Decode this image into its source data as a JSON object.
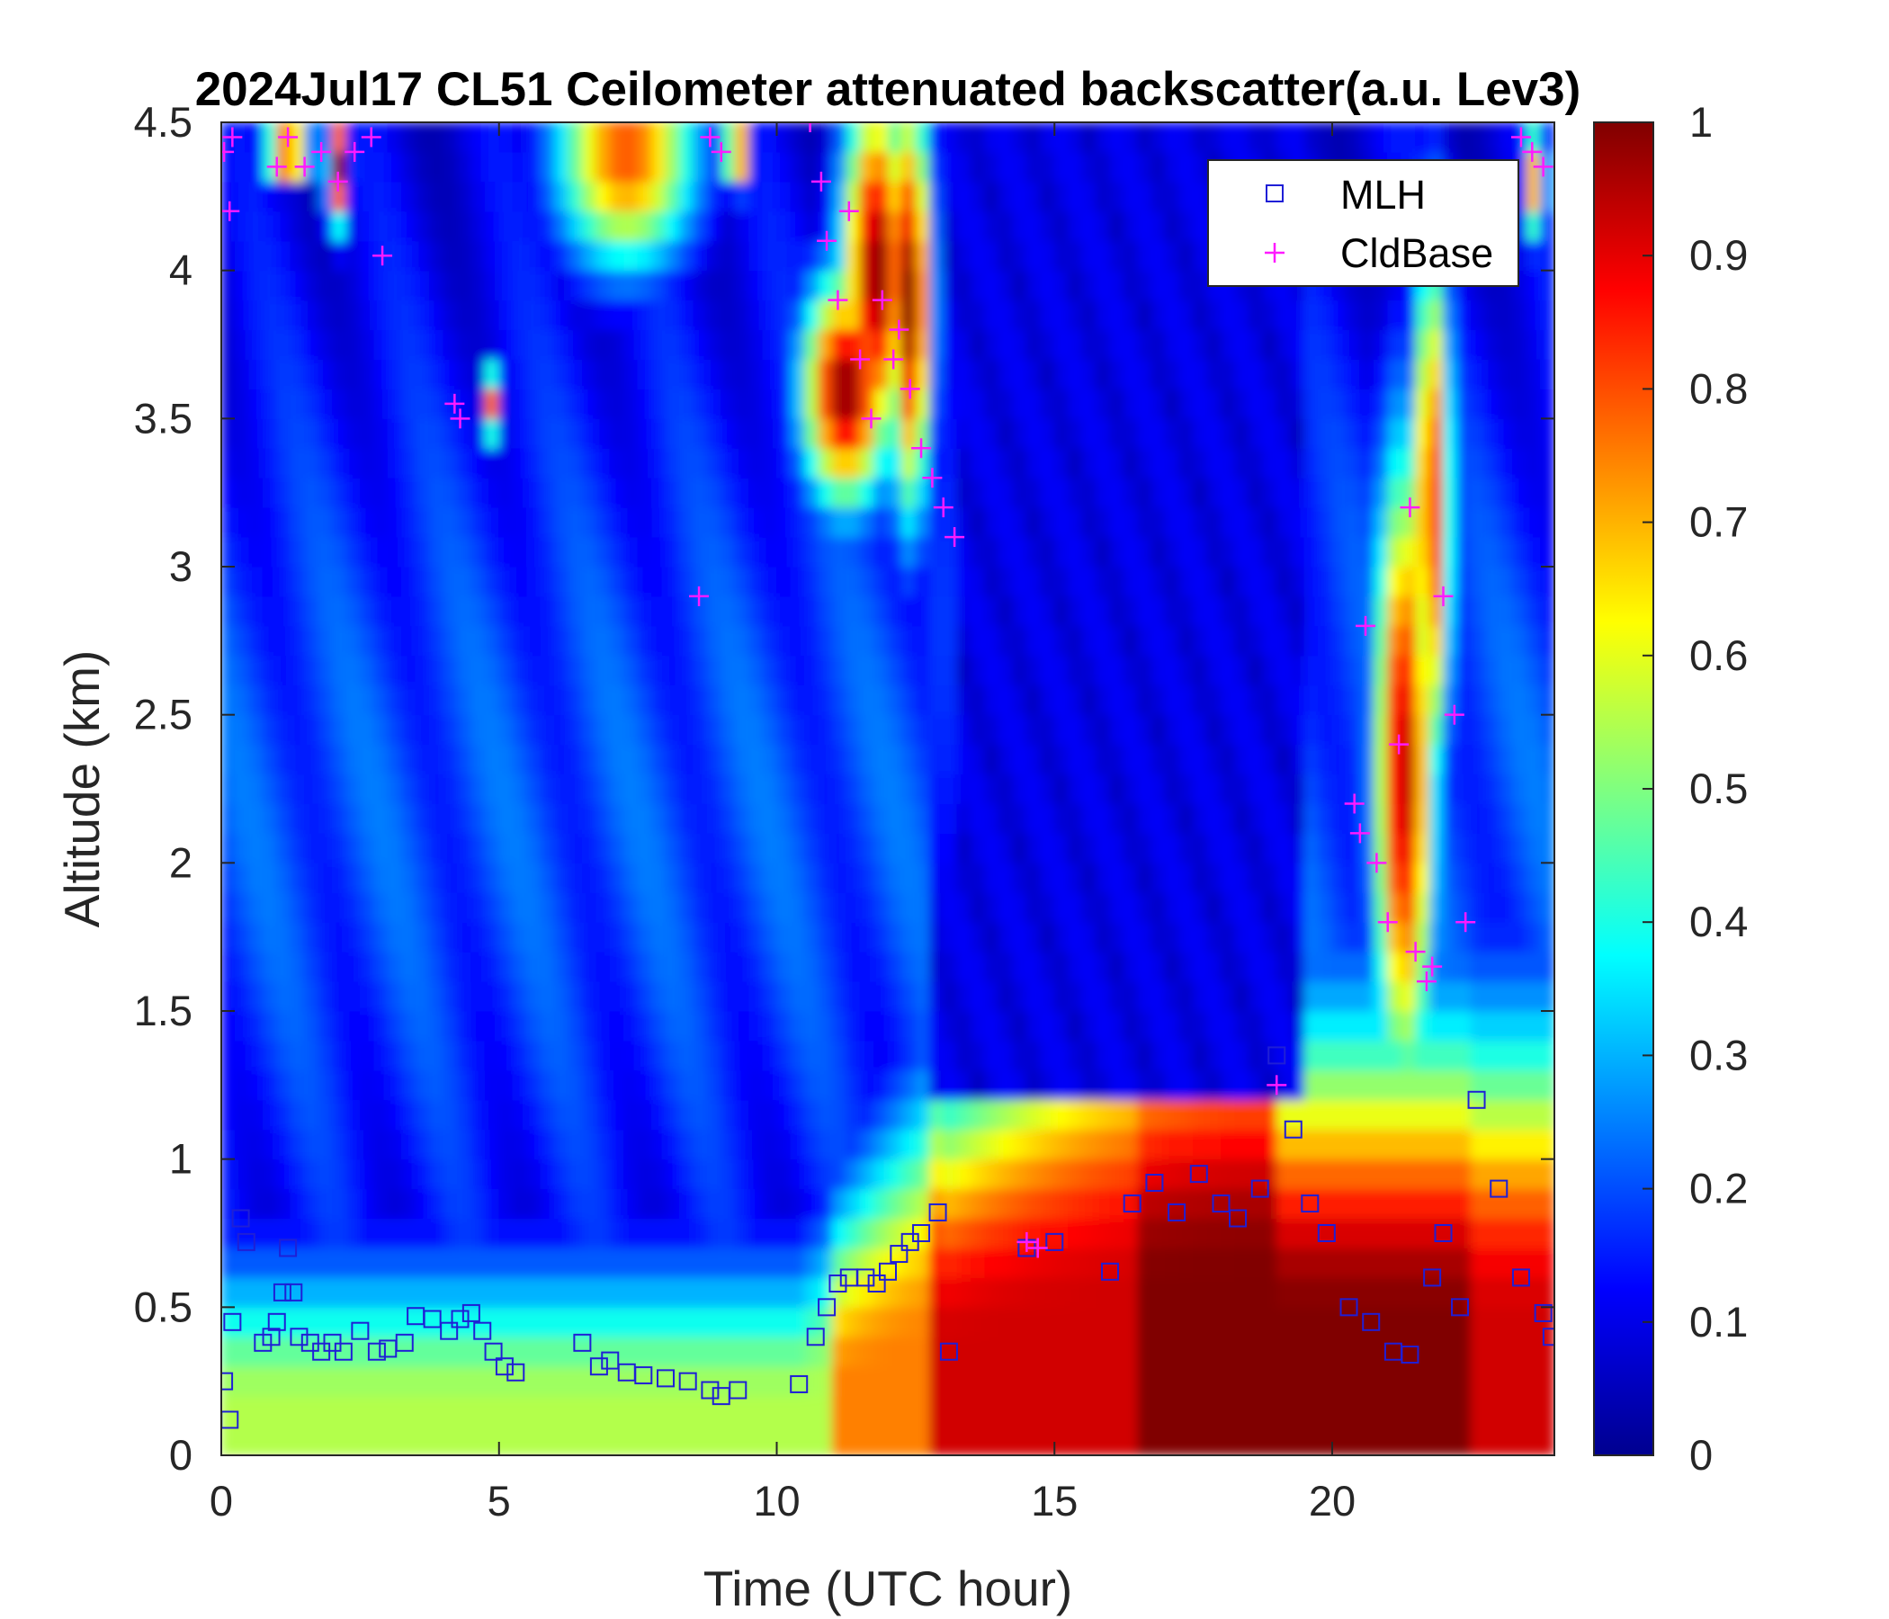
{
  "chart_data": {
    "type": "heatmap",
    "title": "2024Jul17 CL51 Ceilometer attenuated backscatter(a.u. Lev3)",
    "xlabel": "Time (UTC hour)",
    "ylabel": "Altitude (km)",
    "xlim": [
      0,
      24
    ],
    "ylim": [
      0,
      4.5
    ],
    "xticks": [
      "0",
      "5",
      "10",
      "15",
      "20"
    ],
    "yticks": [
      "0",
      "0.5",
      "1",
      "1.5",
      "2",
      "2.5",
      "3",
      "3.5",
      "4",
      "4.5"
    ],
    "colorbar": {
      "colormap": "jet",
      "range": [
        0,
        1
      ],
      "ticks": [
        "0",
        "0.1",
        "0.2",
        "0.3",
        "0.4",
        "0.5",
        "0.6",
        "0.7",
        "0.8",
        "0.9",
        "1"
      ]
    },
    "legend": {
      "position": "top-right",
      "entries": [
        {
          "label": "MLH",
          "marker": "square",
          "color": "#1f1fd6"
        },
        {
          "label": "CldBase",
          "marker": "plus",
          "color": "#ff1aff"
        }
      ]
    },
    "series": [
      {
        "name": "MLH",
        "marker": "square",
        "x": [
          0.05,
          0.15,
          0.2,
          0.35,
          0.45,
          0.75,
          0.9,
          1.0,
          1.1,
          1.2,
          1.3,
          1.4,
          1.6,
          1.8,
          2.0,
          2.2,
          2.5,
          2.8,
          3.0,
          3.3,
          3.5,
          3.8,
          4.1,
          4.3,
          4.5,
          4.7,
          4.9,
          5.1,
          5.3,
          6.5,
          6.8,
          7.0,
          7.3,
          7.6,
          8.0,
          8.4,
          8.8,
          9.0,
          9.3,
          10.4,
          10.7,
          10.9,
          11.1,
          11.3,
          11.6,
          11.8,
          12.0,
          12.2,
          12.4,
          12.6,
          12.9,
          13.1,
          14.5,
          15.0,
          16.0,
          16.4,
          16.8,
          17.2,
          17.6,
          18.0,
          18.3,
          18.7,
          19.0,
          19.3,
          19.6,
          19.9,
          20.3,
          20.7,
          21.1,
          21.4,
          21.8,
          22.0,
          22.3,
          22.6,
          23.0,
          23.4,
          23.8,
          23.95
        ],
        "y": [
          0.25,
          0.12,
          0.45,
          0.8,
          0.72,
          0.38,
          0.4,
          0.45,
          0.55,
          0.7,
          0.55,
          0.4,
          0.38,
          0.35,
          0.38,
          0.35,
          0.42,
          0.35,
          0.36,
          0.38,
          0.47,
          0.46,
          0.42,
          0.46,
          0.48,
          0.42,
          0.35,
          0.3,
          0.28,
          0.38,
          0.3,
          0.32,
          0.28,
          0.27,
          0.26,
          0.25,
          0.22,
          0.2,
          0.22,
          0.24,
          0.4,
          0.5,
          0.58,
          0.6,
          0.6,
          0.58,
          0.62,
          0.68,
          0.72,
          0.75,
          0.82,
          0.35,
          0.7,
          0.72,
          0.62,
          0.85,
          0.92,
          0.82,
          0.95,
          0.85,
          0.8,
          0.9,
          1.35,
          1.1,
          0.85,
          0.75,
          0.5,
          0.45,
          0.35,
          0.34,
          0.6,
          0.75,
          0.5,
          1.2,
          0.9,
          0.6,
          0.48,
          0.4
        ]
      },
      {
        "name": "CldBase",
        "marker": "plus",
        "x": [
          0.05,
          0.15,
          0.2,
          1.0,
          1.2,
          1.5,
          1.8,
          2.1,
          2.4,
          2.7,
          2.9,
          4.2,
          4.3,
          8.6,
          8.8,
          9.0,
          10.6,
          10.8,
          10.9,
          11.1,
          11.3,
          11.5,
          11.7,
          11.9,
          12.1,
          12.2,
          12.4,
          12.6,
          12.8,
          13.0,
          13.2,
          14.5,
          14.7,
          19.0,
          20.4,
          20.5,
          20.6,
          20.8,
          21.0,
          21.2,
          21.4,
          21.5,
          21.7,
          21.8,
          22.0,
          22.2,
          22.4,
          23.4,
          23.6,
          23.8
        ],
        "y": [
          4.4,
          4.2,
          4.45,
          4.35,
          4.45,
          4.35,
          4.4,
          4.3,
          4.4,
          4.45,
          4.05,
          3.55,
          3.5,
          2.9,
          4.45,
          4.4,
          4.5,
          4.3,
          4.1,
          3.9,
          4.2,
          3.7,
          3.5,
          3.9,
          3.7,
          3.8,
          3.6,
          3.4,
          3.3,
          3.2,
          3.1,
          0.72,
          0.7,
          1.25,
          2.2,
          2.1,
          2.8,
          2.0,
          1.8,
          2.4,
          3.2,
          1.7,
          1.6,
          1.65,
          2.9,
          2.5,
          1.8,
          4.45,
          4.4,
          4.35
        ]
      }
    ]
  }
}
